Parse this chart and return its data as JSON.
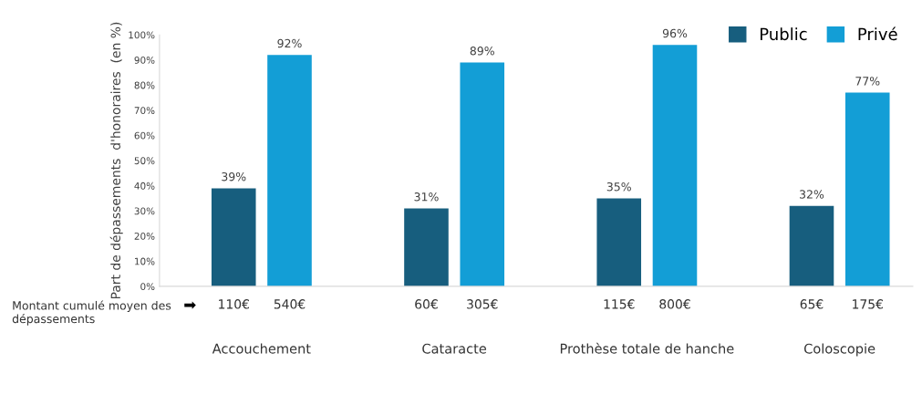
{
  "chart_data": {
    "type": "bar",
    "ylabel": "Part de dépassements  d'honoraires  (en %)",
    "categories": [
      "Accouchement",
      "Cataracte",
      "Prothèse totale de hanche",
      "Coloscopie"
    ],
    "series": [
      {
        "name": "Public",
        "color": "#175e7e",
        "values": [
          39,
          31,
          35,
          32
        ],
        "value_labels": [
          "39%",
          "31%",
          "35%",
          "32%"
        ]
      },
      {
        "name": "Privé",
        "color": "#139ed6",
        "values": [
          92,
          89,
          96,
          77
        ],
        "value_labels": [
          "92%",
          "89%",
          "96%",
          "77%"
        ]
      }
    ],
    "ylim": [
      0,
      100
    ],
    "yticks": [
      {
        "value": 0,
        "label": "0%"
      },
      {
        "value": 10,
        "label": "10%"
      },
      {
        "value": 20,
        "label": "20%"
      },
      {
        "value": 30,
        "label": "30%"
      },
      {
        "value": 40,
        "label": "40%"
      },
      {
        "value": 50,
        "label": "50%"
      },
      {
        "value": 60,
        "label": "60%"
      },
      {
        "value": 70,
        "label": "70%"
      },
      {
        "value": 80,
        "label": "80%"
      },
      {
        "value": 90,
        "label": "90%"
      },
      {
        "value": 100,
        "label": "100%"
      }
    ],
    "grid": false,
    "legend": "top right",
    "annotations": [
      "Montant cumulé moyen des dépassements",
      "➡",
      "110€",
      "540€",
      "60€",
      "305€",
      "115€",
      "800€",
      "65€",
      "175€"
    ]
  }
}
